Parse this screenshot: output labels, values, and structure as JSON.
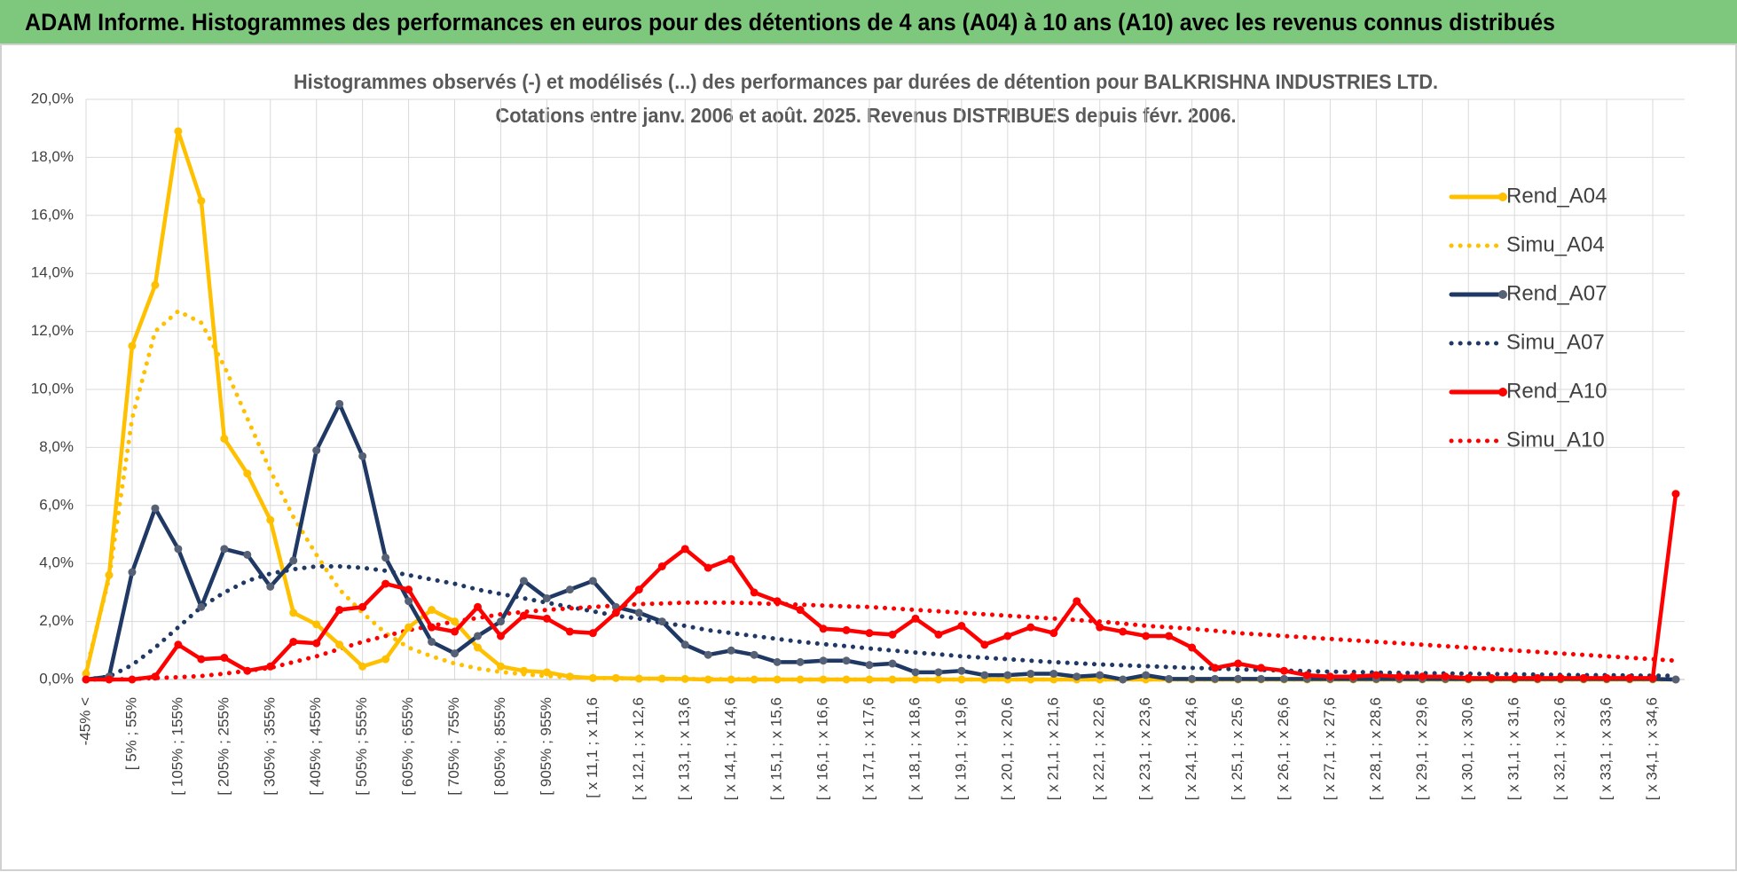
{
  "header": {
    "title": "ADAM Informe. Histogrammes des performances en euros pour des détentions de 4 ans (A04) à 10 ans (A10) avec les revenus connus distribués"
  },
  "chart_data": {
    "type": "line",
    "title": "Histogrammes observés (-) et modélisés (...) des performances par durées de détention pour BALKRISHNA INDUSTRIES LTD.",
    "subtitle": "Cotations entre janv. 2006 et août. 2025. Revenus DISTRIBUES depuis févr. 2006.",
    "categories": [
      "-45% <",
      null,
      "[ 5% ; 55%",
      null,
      "[ 105% ; 155%",
      null,
      "[ 205% ; 255%",
      null,
      "[ 305% ; 355%",
      null,
      "[ 405% ; 455%",
      null,
      "[ 505% ; 555%",
      null,
      "[ 605% ; 655%",
      null,
      "[ 705% ; 755%",
      null,
      "[ 805% ; 855%",
      null,
      "[ 905% ; 955%",
      null,
      "[ x 11,1 ; x 11,6",
      null,
      "[ x 12,1 ; x 12,6",
      null,
      "[ x 13,1 ; x 13,6",
      null,
      "[ x 14,1 ; x 14,6",
      null,
      "[ x 15,1 ; x 15,6",
      null,
      "[ x 16,1 ; x 16,6",
      null,
      "[ x 17,1 ; x 17,6",
      null,
      "[ x 18,1 ; x 18,6",
      null,
      "[ x 19,1 ; x 19,6",
      null,
      "[ x 20,1 ; x 20,6",
      null,
      "[ x 21,1 ; x 21,6",
      null,
      "[ x 22,1 ; x 22,6",
      null,
      "[ x 23,1 ; x 23,6",
      null,
      "[ x 24,1 ; x 24,6",
      null,
      "[ x 25,1 ; x 25,6",
      null,
      "[ x 26,1 ; x 26,6",
      null,
      "[ x 27,1 ; x 27,6",
      null,
      "[ x 28,1 ; x 28,6",
      null,
      "[ x 29,1 ; x 29,6",
      null,
      "[ x 30,1 ; x 30,6",
      null,
      "[ x 31,1 ; x 31,6",
      null,
      "[ x 32,1 ; x 32,6",
      null,
      "[ x 33,1 ; x 33,6",
      null,
      "[ x 34,1 ; x 34,6",
      null
    ],
    "ylim": [
      0,
      20
    ],
    "yticks": [
      {
        "value": 0,
        "label": "0,0%"
      },
      {
        "value": 2,
        "label": "2,0%"
      },
      {
        "value": 4,
        "label": "4,0%"
      },
      {
        "value": 6,
        "label": "6,0%"
      },
      {
        "value": 8,
        "label": "8,0%"
      },
      {
        "value": 10,
        "label": "10,0%"
      },
      {
        "value": 12,
        "label": "12,0%"
      },
      {
        "value": 14,
        "label": "14,0%"
      },
      {
        "value": 16,
        "label": "16,0%"
      },
      {
        "value": 18,
        "label": "18,0%"
      },
      {
        "value": 20,
        "label": "20,0%"
      }
    ],
    "grid": true,
    "legend": "right",
    "series": [
      {
        "name": "Rend_A04",
        "color": "#ffc000",
        "style": "solid",
        "marker_color": "#ffc000",
        "values": [
          0.2,
          3.6,
          11.5,
          13.6,
          18.9,
          16.5,
          8.3,
          7.1,
          5.5,
          2.3,
          1.9,
          1.2,
          0.45,
          0.7,
          1.8,
          2.4,
          2.0,
          1.1,
          0.45,
          0.3,
          0.25,
          0.1,
          0.05,
          0.05,
          0.03,
          0.03,
          0.02,
          0,
          0,
          0,
          0,
          0,
          0,
          0,
          0,
          0,
          0,
          0,
          0,
          0,
          0,
          0,
          0,
          0,
          0,
          0,
          0,
          0,
          0,
          0,
          0,
          0,
          0,
          0,
          0,
          0,
          0,
          0,
          0,
          0,
          0,
          0,
          0,
          0,
          0,
          0,
          0,
          0,
          0,
          0
        ]
      },
      {
        "name": "Simu_A04",
        "color": "#ffc000",
        "style": "dotted",
        "values": [
          0.3,
          3.5,
          9,
          12,
          12.7,
          12.3,
          10.8,
          9,
          7.2,
          5.6,
          4.3,
          3.1,
          2.3,
          1.6,
          1.1,
          0.8,
          0.55,
          0.38,
          0.26,
          0.18,
          0.12,
          0.08,
          0.05,
          0.04,
          0.03,
          0.02,
          0.02,
          0.01,
          0.01,
          0.01,
          0,
          0,
          0,
          0,
          0,
          0,
          0,
          0,
          0,
          0,
          0,
          0,
          0,
          0,
          0,
          0,
          0,
          0,
          0,
          0,
          0,
          0,
          0,
          0,
          0,
          0,
          0,
          0,
          0,
          0,
          0,
          0,
          0,
          0,
          0,
          0,
          0,
          0,
          0,
          0
        ]
      },
      {
        "name": "Rend_A07",
        "color": "#1f3864",
        "style": "solid",
        "marker_color": "#566175",
        "values": [
          0,
          0.1,
          3.7,
          5.9,
          4.5,
          2.5,
          4.5,
          4.3,
          3.2,
          4.1,
          7.9,
          9.5,
          7.7,
          4.2,
          2.7,
          1.3,
          0.9,
          1.5,
          2.0,
          3.4,
          2.8,
          3.1,
          3.4,
          2.5,
          2.3,
          2.0,
          1.2,
          0.85,
          1.0,
          0.85,
          0.6,
          0.6,
          0.65,
          0.65,
          0.5,
          0.55,
          0.25,
          0.25,
          0.3,
          0.15,
          0.15,
          0.2,
          0.2,
          0.1,
          0.15,
          0,
          0.15,
          0.02,
          0.02,
          0.02,
          0.02,
          0.02,
          0.02,
          0.02,
          0.02,
          0.02,
          0.02,
          0.02,
          0.02,
          0.02,
          0.02,
          0.02,
          0.02,
          0.02,
          0.02,
          0.02,
          0.02,
          0.02,
          0.02,
          0
        ]
      },
      {
        "name": "Simu_A07",
        "color": "#1f3864",
        "style": "dotted",
        "values": [
          0,
          0.1,
          0.5,
          1.1,
          1.8,
          2.5,
          3.0,
          3.4,
          3.65,
          3.8,
          3.9,
          3.9,
          3.85,
          3.75,
          3.6,
          3.45,
          3.3,
          3.1,
          2.95,
          2.8,
          2.65,
          2.5,
          2.35,
          2.2,
          2.1,
          1.95,
          1.85,
          1.7,
          1.6,
          1.5,
          1.4,
          1.3,
          1.22,
          1.15,
          1.07,
          1.0,
          0.93,
          0.87,
          0.8,
          0.75,
          0.7,
          0.65,
          0.6,
          0.56,
          0.52,
          0.49,
          0.46,
          0.43,
          0.4,
          0.38,
          0.35,
          0.33,
          0.31,
          0.29,
          0.27,
          0.26,
          0.24,
          0.23,
          0.22,
          0.21,
          0.2,
          0.19,
          0.18,
          0.17,
          0.16,
          0.15,
          0.15,
          0.14,
          0.13,
          0.13
        ]
      },
      {
        "name": "Rend_A10",
        "color": "#ff0000",
        "style": "solid",
        "marker_color": "#ff0000",
        "values": [
          0,
          0,
          0,
          0.1,
          1.2,
          0.7,
          0.75,
          0.3,
          0.45,
          1.3,
          1.25,
          2.4,
          2.5,
          3.3,
          3.1,
          1.8,
          1.65,
          2.5,
          1.5,
          2.2,
          2.1,
          1.65,
          1.6,
          2.3,
          3.1,
          3.9,
          4.5,
          3.85,
          4.15,
          3.0,
          2.7,
          2.4,
          1.75,
          1.7,
          1.6,
          1.55,
          2.1,
          1.55,
          1.85,
          1.2,
          1.5,
          1.8,
          1.6,
          2.7,
          1.8,
          1.65,
          1.5,
          1.5,
          1.1,
          0.4,
          0.55,
          0.4,
          0.3,
          0.15,
          0.1,
          0.1,
          0.15,
          0.1,
          0.1,
          0.1,
          0.05,
          0.05,
          0.05,
          0.05,
          0.05,
          0.05,
          0.05,
          0.05,
          0.05,
          6.4
        ]
      },
      {
        "name": "Simu_A10",
        "color": "#ff0000",
        "style": "dotted",
        "values": [
          0,
          0,
          0.02,
          0.05,
          0.08,
          0.12,
          0.2,
          0.3,
          0.4,
          0.6,
          0.8,
          1.05,
          1.3,
          1.5,
          1.7,
          1.85,
          2.0,
          2.12,
          2.25,
          2.33,
          2.4,
          2.45,
          2.5,
          2.55,
          2.6,
          2.62,
          2.65,
          2.65,
          2.65,
          2.63,
          2.6,
          2.58,
          2.55,
          2.52,
          2.5,
          2.45,
          2.4,
          2.35,
          2.3,
          2.25,
          2.2,
          2.15,
          2.1,
          2.05,
          2.0,
          1.93,
          1.85,
          1.8,
          1.75,
          1.68,
          1.6,
          1.55,
          1.5,
          1.45,
          1.4,
          1.35,
          1.3,
          1.25,
          1.2,
          1.15,
          1.1,
          1.05,
          1.0,
          0.95,
          0.9,
          0.85,
          0.8,
          0.75,
          0.7,
          0.65
        ]
      }
    ]
  }
}
